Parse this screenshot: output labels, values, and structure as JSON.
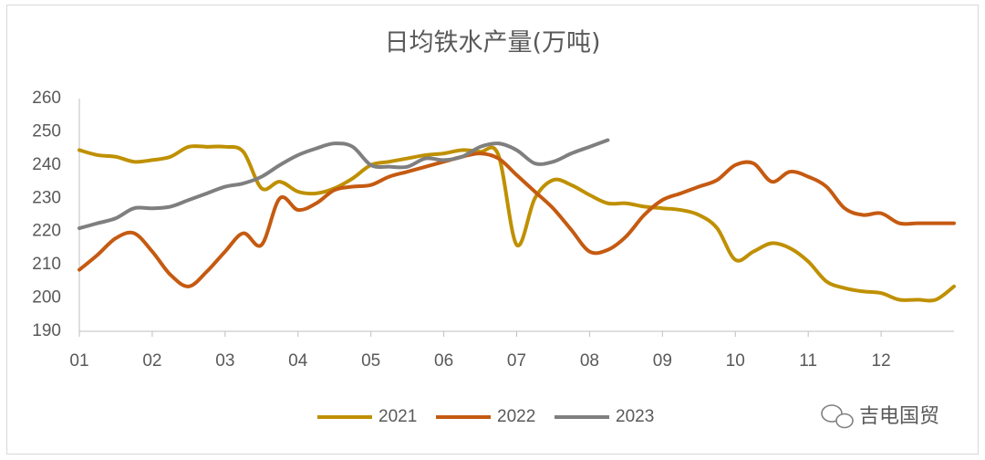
{
  "chart_data": {
    "type": "line",
    "title": "日均铁水产量(万吨)",
    "watermark": "吉电国贸",
    "x": [
      1,
      1.25,
      1.5,
      1.75,
      2,
      2.25,
      2.5,
      2.75,
      3,
      3.25,
      3.5,
      3.75,
      4,
      4.25,
      4.5,
      4.75,
      5,
      5.25,
      5.5,
      5.75,
      6,
      6.25,
      6.5,
      6.75,
      7,
      7.25,
      7.5,
      7.75,
      8,
      8.25,
      8.5,
      8.75,
      9,
      9.25,
      9.5,
      9.75,
      10,
      10.25,
      10.5,
      10.75,
      11,
      11.25,
      11.5,
      11.75,
      12,
      12.25,
      12.5,
      12.75,
      13
    ],
    "series": [
      {
        "name": "2021",
        "color": "#bf9000",
        "values": [
          244.5,
          243,
          242.5,
          241,
          241.5,
          242.5,
          245.5,
          245.5,
          245.5,
          244,
          233,
          235,
          232,
          231.5,
          233,
          236,
          240,
          241,
          242,
          243,
          243.5,
          244.5,
          244,
          243,
          216,
          230,
          235.5,
          234,
          231,
          228.5,
          228.5,
          227.5,
          227,
          226.5,
          225,
          221,
          211.5,
          214,
          216.5,
          215,
          211,
          205,
          203,
          202,
          201.5,
          199.5,
          199.5,
          199.5,
          203.5
        ]
      },
      {
        "name": "2022",
        "color": "#c55a11",
        "values": [
          208.5,
          213,
          218,
          219.5,
          214,
          207,
          203.5,
          208,
          214,
          219.5,
          216,
          230,
          226.5,
          228.5,
          232.5,
          233.5,
          234,
          236.5,
          238,
          239.5,
          241,
          242.5,
          243.5,
          242,
          237,
          232,
          227,
          220.5,
          214,
          214.5,
          218.5,
          225,
          229.5,
          231.5,
          233.5,
          235.5,
          240,
          240.5,
          235,
          238,
          236.5,
          233.5,
          227,
          225,
          225.5,
          222.5,
          222.5,
          222.5,
          222.5
        ]
      },
      {
        "name": "2023",
        "color": "#7f7f7f",
        "values": [
          221,
          222.5,
          224,
          227,
          227,
          227.5,
          229.5,
          231.5,
          233.5,
          234.5,
          236.5,
          240,
          243,
          245,
          246.5,
          245.5,
          240,
          239.5,
          239.5,
          242,
          241.5,
          242.5,
          245.5,
          246.5,
          244.5,
          240.5,
          241,
          243.5,
          245.5,
          247.5,
          null,
          null,
          null,
          null,
          null,
          null,
          null,
          null,
          null,
          null,
          null,
          null,
          null,
          null,
          null,
          null,
          null,
          null,
          null
        ]
      }
    ],
    "xlim": [
      1,
      13
    ],
    "xticks": [
      {
        "value": 1,
        "label": "01"
      },
      {
        "value": 2,
        "label": "02"
      },
      {
        "value": 3,
        "label": "03"
      },
      {
        "value": 4,
        "label": "04"
      },
      {
        "value": 5,
        "label": "05"
      },
      {
        "value": 6,
        "label": "06"
      },
      {
        "value": 7,
        "label": "07"
      },
      {
        "value": 8,
        "label": "08"
      },
      {
        "value": 9,
        "label": "09"
      },
      {
        "value": 10,
        "label": "10"
      },
      {
        "value": 11,
        "label": "11"
      },
      {
        "value": 12,
        "label": "12"
      }
    ],
    "ylim": [
      190,
      260
    ],
    "yticks": [
      190,
      200,
      210,
      220,
      230,
      240,
      250,
      260
    ],
    "grid": false,
    "legend": "bottom"
  }
}
